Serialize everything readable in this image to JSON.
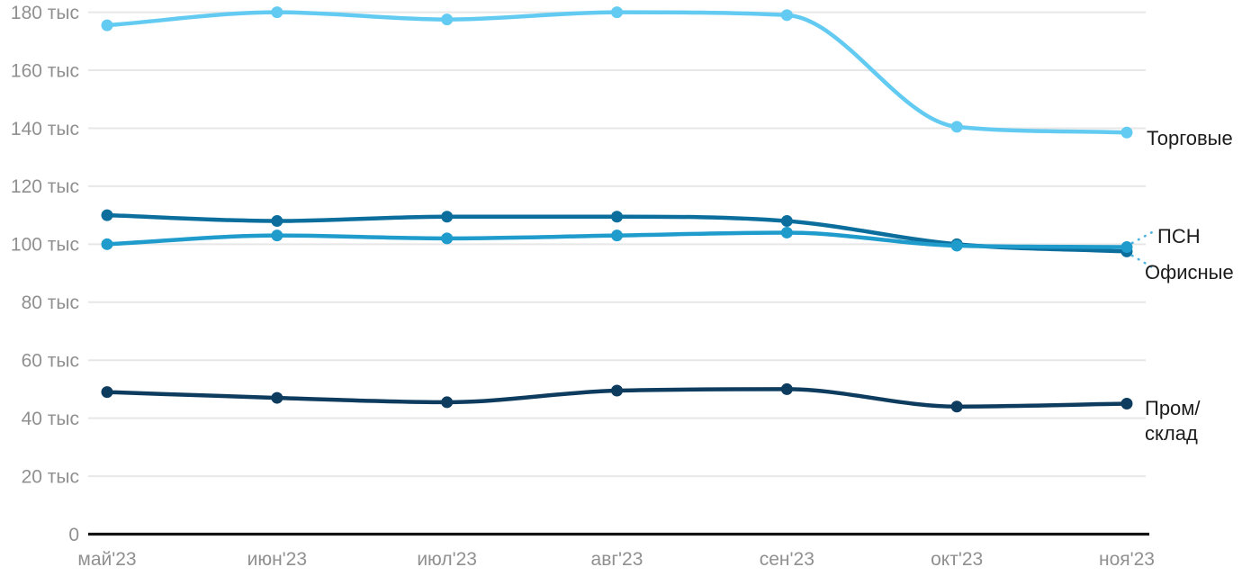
{
  "chart_data": {
    "type": "line",
    "title": "",
    "unit_suffix": " тыс",
    "categories": [
      "май'23",
      "июн'23",
      "июл'23",
      "авг'23",
      "сен'23",
      "окт'23",
      "ноя'23"
    ],
    "y_ticks": [
      0,
      20,
      40,
      60,
      80,
      100,
      120,
      140,
      160,
      180
    ],
    "y_tick_labels": [
      "0",
      "20 тыс",
      "40 тыс",
      "60 тыс",
      "80 тыс",
      "100 тыс",
      "120 тыс",
      "140 тыс",
      "160 тыс",
      "180 тыс"
    ],
    "ylim": [
      0,
      185
    ],
    "grid": "horizontal-only",
    "legend_position": "right-inline-labels",
    "series": [
      {
        "name": "Торговые",
        "color": "#63CBF2",
        "values": [
          175.5,
          180,
          177.5,
          180,
          179,
          140.5,
          138.5
        ],
        "label_lines": [
          "Торговые"
        ]
      },
      {
        "name": "Офисные",
        "color": "#0C6E9C",
        "values": [
          110,
          108,
          109.5,
          109.5,
          108,
          100,
          97.5
        ],
        "label_lines": [
          "Офисные"
        ]
      },
      {
        "name": "ПСН",
        "color": "#1F9CCC",
        "values": [
          100,
          103,
          102,
          103,
          104,
          99.5,
          99
        ],
        "label_lines": [
          "ПСН"
        ]
      },
      {
        "name": "Пром/склад",
        "color": "#0E3C5F",
        "values": [
          49,
          47,
          45.5,
          49.5,
          50,
          44,
          45
        ],
        "label_lines": [
          "Пром/",
          "склад"
        ]
      }
    ],
    "colors": {
      "grid": "#E7E7E7",
      "axis": "#141414",
      "tick_label": "#909090",
      "series_label": "#1C1C1C",
      "leader": "#4FB2DF",
      "background": "#FFFFFF"
    }
  }
}
